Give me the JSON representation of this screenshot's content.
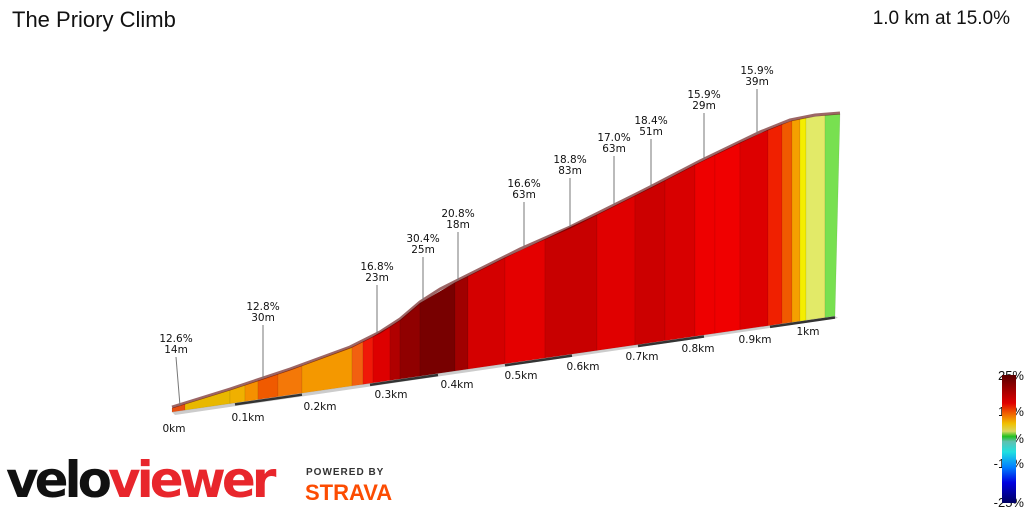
{
  "header": {
    "title": "The Priory Climb",
    "summary": "1.0 km at 15.0%"
  },
  "profile": {
    "segments": [
      {
        "x0": 172,
        "x1": 185,
        "color": "#e85010"
      },
      {
        "x0": 185,
        "x1": 230,
        "color": "#e8b800"
      },
      {
        "x0": 230,
        "x1": 245,
        "color": "#f0b000"
      },
      {
        "x0": 245,
        "x1": 258,
        "color": "#f59000"
      },
      {
        "x0": 258,
        "x1": 278,
        "color": "#f05a00"
      },
      {
        "x0": 278,
        "x1": 302,
        "color": "#f47808"
      },
      {
        "x0": 302,
        "x1": 352,
        "color": "#f49800"
      },
      {
        "x0": 352,
        "x1": 363,
        "color": "#f26010"
      },
      {
        "x0": 363,
        "x1": 373,
        "color": "#f01808"
      },
      {
        "x0": 373,
        "x1": 390,
        "color": "#dd0000"
      },
      {
        "x0": 390,
        "x1": 400,
        "color": "#b00000"
      },
      {
        "x0": 400,
        "x1": 420,
        "color": "#900000"
      },
      {
        "x0": 420,
        "x1": 455,
        "color": "#780000"
      },
      {
        "x0": 455,
        "x1": 468,
        "color": "#a00000"
      },
      {
        "x0": 468,
        "x1": 505,
        "color": "#d40000"
      },
      {
        "x0": 505,
        "x1": 545,
        "color": "#e40000"
      },
      {
        "x0": 545,
        "x1": 597,
        "color": "#c80000"
      },
      {
        "x0": 597,
        "x1": 635,
        "color": "#e00000"
      },
      {
        "x0": 635,
        "x1": 665,
        "color": "#cc0000"
      },
      {
        "x0": 665,
        "x1": 695,
        "color": "#d80000"
      },
      {
        "x0": 695,
        "x1": 715,
        "color": "#ee0000"
      },
      {
        "x0": 715,
        "x1": 740,
        "color": "#f00000"
      },
      {
        "x0": 740,
        "x1": 768,
        "color": "#dd0000"
      },
      {
        "x0": 768,
        "x1": 782,
        "color": "#f02000"
      },
      {
        "x0": 782,
        "x1": 792,
        "color": "#f05a00"
      },
      {
        "x0": 792,
        "x1": 800,
        "color": "#f5a000"
      },
      {
        "x0": 800,
        "x1": 806,
        "color": "#f5ee00"
      },
      {
        "x0": 806,
        "x1": 825,
        "color": "#e2ea68"
      },
      {
        "x0": 825,
        "x1": 840,
        "color": "#78e050"
      }
    ],
    "callouts": [
      {
        "grade": "12.6%",
        "length": "14m"
      },
      {
        "grade": "12.8%",
        "length": "30m"
      },
      {
        "grade": "16.8%",
        "length": "23m"
      },
      {
        "grade": "30.4%",
        "length": "25m"
      },
      {
        "grade": "20.8%",
        "length": "18m"
      },
      {
        "grade": "16.6%",
        "length": "63m"
      },
      {
        "grade": "18.8%",
        "length": "83m"
      },
      {
        "grade": "17.0%",
        "length": "63m"
      },
      {
        "grade": "18.4%",
        "length": "51m"
      },
      {
        "grade": "15.9%",
        "length": "29m"
      },
      {
        "grade": "15.9%",
        "length": "39m"
      }
    ],
    "distance_labels": [
      "0km",
      "0.1km",
      "0.2km",
      "0.3km",
      "0.4km",
      "0.5km",
      "0.6km",
      "0.7km",
      "0.8km",
      "0.9km",
      "1km"
    ]
  },
  "legend": {
    "labels": [
      "25%",
      "10%",
      "0%",
      "-10%",
      "-25%"
    ]
  },
  "branding": {
    "logo_a": "velo",
    "logo_b": "viewer",
    "powered_by": "POWERED BY",
    "strava": "STRAVA",
    "strava_color": "#fc4c02"
  }
}
